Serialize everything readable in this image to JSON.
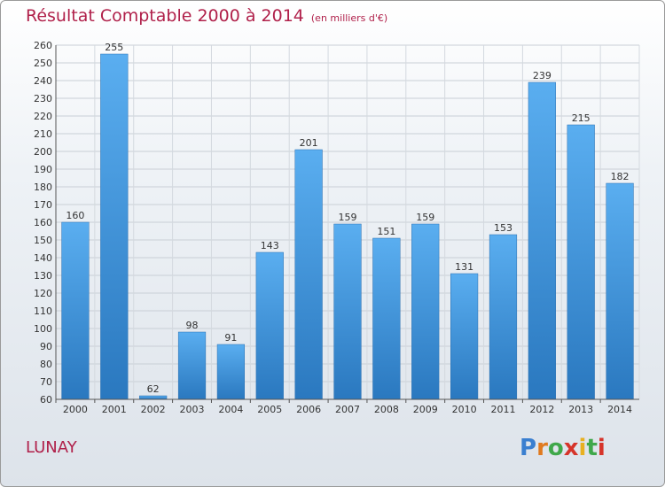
{
  "title": "Résultat Comptable 2000 à 2014",
  "subtitle": "(en milliers d'€)",
  "location": "LUNAY",
  "brand": {
    "text": "Proxiti",
    "letter_colors": [
      "#3a7fd0",
      "#e07a1f",
      "#3fa84a",
      "#d6342a",
      "#e8b020",
      "#3fa84a",
      "#d6342a"
    ]
  },
  "colors": {
    "title": "#b0204a",
    "bar_top": "#5aaef0",
    "bar_bottom": "#2a78bf"
  },
  "chart_data": {
    "type": "bar",
    "categories": [
      "2000",
      "2001",
      "2002",
      "2003",
      "2004",
      "2005",
      "2006",
      "2007",
      "2008",
      "2009",
      "2010",
      "2011",
      "2012",
      "2013",
      "2014"
    ],
    "values": [
      160,
      255,
      62,
      98,
      91,
      143,
      201,
      159,
      151,
      159,
      131,
      153,
      239,
      215,
      182
    ],
    "title": "Résultat Comptable 2000 à 2014",
    "subtitle": "(en milliers d'€)",
    "ylim": [
      60,
      260
    ],
    "yticks": [
      60,
      70,
      80,
      90,
      100,
      110,
      120,
      130,
      140,
      150,
      160,
      170,
      180,
      190,
      200,
      210,
      220,
      230,
      240,
      250,
      260
    ],
    "grid": true,
    "data_labels": true
  }
}
